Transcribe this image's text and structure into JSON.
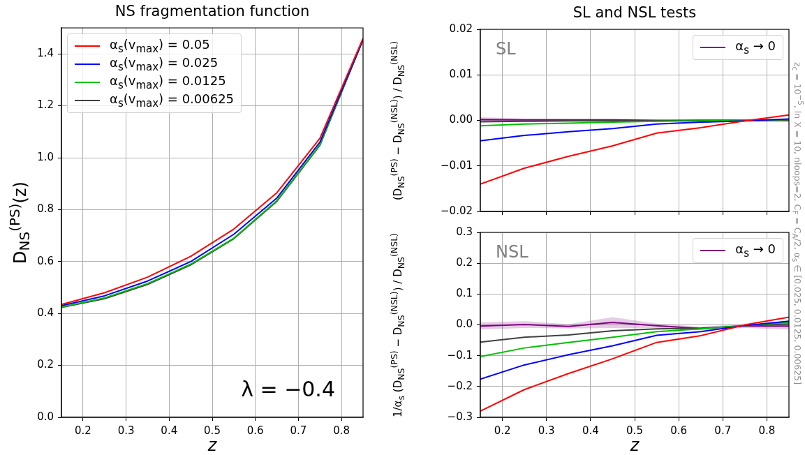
{
  "chart_data": [
    {
      "type": "line",
      "title": "NS fragmentation function",
      "xlabel": "z",
      "ylabel": "D$_{NS}$$^{(PS)}$(z)",
      "x": [
        0.15,
        0.25,
        0.35,
        0.45,
        0.55,
        0.65,
        0.75,
        0.85
      ],
      "xlim": [
        0.15,
        0.85
      ],
      "xticks": [
        0.2,
        0.3,
        0.4,
        0.5,
        0.6,
        0.7,
        0.8
      ],
      "ylim": [
        0,
        1.5
      ],
      "yticks": [
        {
          "value": 0,
          "label": "0.0"
        },
        0.2,
        0.4,
        0.6,
        0.8,
        {
          "value": 1,
          "label": "1.0"
        },
        1.2,
        1.4
      ],
      "grid": true,
      "legend": "top left",
      "annotations": [
        "λ = −0.4"
      ],
      "series": [
        {
          "name": "α$_{s}$(v$_{max}$) = 0.05",
          "color": "#ff0000",
          "values": [
            0.435,
            0.48,
            0.54,
            0.62,
            0.725,
            0.865,
            1.075,
            1.46
          ]
        },
        {
          "name": "α$_{s}$(v$_{max}$) = 0.025",
          "color": "#0000ff",
          "values": [
            0.43,
            0.468,
            0.525,
            0.6,
            0.705,
            0.845,
            1.06,
            1.455
          ]
        },
        {
          "name": "α$_{s}$(v$_{max}$) = 0.0125",
          "color": "#00c000",
          "values": [
            0.425,
            0.46,
            0.515,
            0.59,
            0.69,
            0.835,
            1.05,
            1.455
          ]
        },
        {
          "name": "α$_{s}$(v$_{max}$) = 0.00625",
          "color": "#404040",
          "values": [
            0.423,
            0.457,
            0.512,
            0.587,
            0.688,
            0.832,
            1.048,
            1.455
          ]
        }
      ]
    },
    {
      "type": "line",
      "title": "SL and NSL tests",
      "ylabel": "(D$_{NS}$$^{(PS)}$ − D$_{NS}$$^{(NSL)}$) / D$_{NS}$$^{(NSL)}$",
      "x": [
        0.15,
        0.25,
        0.35,
        0.45,
        0.55,
        0.65,
        0.75,
        0.85
      ],
      "xlim": [
        0.15,
        0.85
      ],
      "xticks": [
        0.2,
        0.3,
        0.4,
        0.5,
        0.6,
        0.7,
        0.8
      ],
      "ylim": [
        -0.02,
        0.02
      ],
      "yticks": [
        {
          "value": -0.02,
          "label": "−0.02"
        },
        {
          "value": -0.01,
          "label": "−0.01"
        },
        {
          "value": 0,
          "label": "0.00"
        },
        {
          "value": 0.01,
          "label": "0.01"
        },
        {
          "value": 0.02,
          "label": "0.02"
        }
      ],
      "grid": true,
      "legend": "top right",
      "tick_labels": "y",
      "annotations": [
        "SL",
        "z$_{c}$ = 10$^{−5}$, ln X = 10, nloops=2, C$_{F}$ = C$_{A}$/2, α$_{s}$ ∈ [0.025, 0.0125, 0.00625]"
      ],
      "series": [
        {
          "color": "#ff0000",
          "values": [
            -0.014,
            -0.0105,
            -0.0079,
            -0.0056,
            -0.0028,
            -0.0016,
            -0.0001,
            0.0012
          ]
        },
        {
          "color": "#0000ff",
          "values": [
            -0.0045,
            -0.0033,
            -0.0025,
            -0.0018,
            -0.0008,
            -0.0004,
            -0.0001,
            0.0003
          ]
        },
        {
          "color": "#00c000",
          "values": [
            -0.0012,
            -0.0008,
            -0.0006,
            -0.0004,
            -0.0002,
            -0.0001,
            0,
            0.0002
          ]
        },
        {
          "color": "#404040",
          "values": [
            -0.0003,
            -0.0002,
            -0.0001,
            -0.0001,
            -0.0001,
            0,
            0,
            0.0001
          ]
        },
        {
          "name": "α$_{s}$ → 0",
          "color": "#800080",
          "values": [
            0.0002,
            0.0001,
            0.0001,
            0.0001,
            0,
            0,
            0,
            0
          ],
          "lower": [
            -0.0004,
            -0.0002,
            -0.0001,
            -0.0001,
            -0.0001,
            -0.0001,
            -0.0002,
            -0.0004
          ],
          "upper": [
            0.0007,
            0.0004,
            0.0003,
            0.0003,
            0.0002,
            0.0001,
            0.0002,
            0.0004
          ]
        }
      ]
    },
    {
      "type": "line",
      "xlabel": "z",
      "ylabel": "1/α$_{s}$ (D$_{NS}$$^{(PS)}$ − D$_{NS}$$^{(NSL)}$) / D$_{NS}$$^{(NSL)}$",
      "x": [
        0.15,
        0.25,
        0.35,
        0.45,
        0.55,
        0.65,
        0.75,
        0.85
      ],
      "xlim": [
        0.15,
        0.85
      ],
      "xticks": [
        0.2,
        0.3,
        0.4,
        0.5,
        0.6,
        0.7,
        0.8
      ],
      "ylim": [
        -0.3,
        0.3
      ],
      "yticks": [
        {
          "value": -0.3,
          "label": "−0.3"
        },
        {
          "value": -0.2,
          "label": "−0.2"
        },
        {
          "value": -0.1,
          "label": "−0.1"
        },
        {
          "value": 0,
          "label": "0.0"
        },
        0.1,
        0.2,
        0.3
      ],
      "grid": true,
      "legend": "top right",
      "annotations": [
        "NSL"
      ],
      "series": [
        {
          "color": "#ff0000",
          "values": [
            -0.28,
            -0.21,
            -0.158,
            -0.11,
            -0.057,
            -0.035,
            0,
            0.025
          ]
        },
        {
          "color": "#0000ff",
          "values": [
            -0.176,
            -0.13,
            -0.097,
            -0.068,
            -0.034,
            -0.022,
            -0.002,
            0.012
          ]
        },
        {
          "color": "#00c000",
          "values": [
            -0.103,
            -0.075,
            -0.057,
            -0.04,
            -0.022,
            -0.013,
            -0.002,
            0.008
          ]
        },
        {
          "color": "#404040",
          "values": [
            -0.056,
            -0.04,
            -0.033,
            -0.019,
            -0.013,
            -0.011,
            -0.003,
            0.003
          ]
        },
        {
          "name": "α$_{s}$ → 0",
          "color": "#800080",
          "values": [
            -0.004,
            0.001,
            -0.005,
            0.008,
            -0.003,
            -0.012,
            -0.004,
            -0.004
          ],
          "lower": [
            -0.015,
            -0.01,
            -0.012,
            -0.01,
            -0.01,
            -0.018,
            -0.01,
            -0.015
          ],
          "upper": [
            0.008,
            0.012,
            0.002,
            0.025,
            0.004,
            -0.006,
            0.002,
            0.01
          ]
        }
      ]
    }
  ]
}
